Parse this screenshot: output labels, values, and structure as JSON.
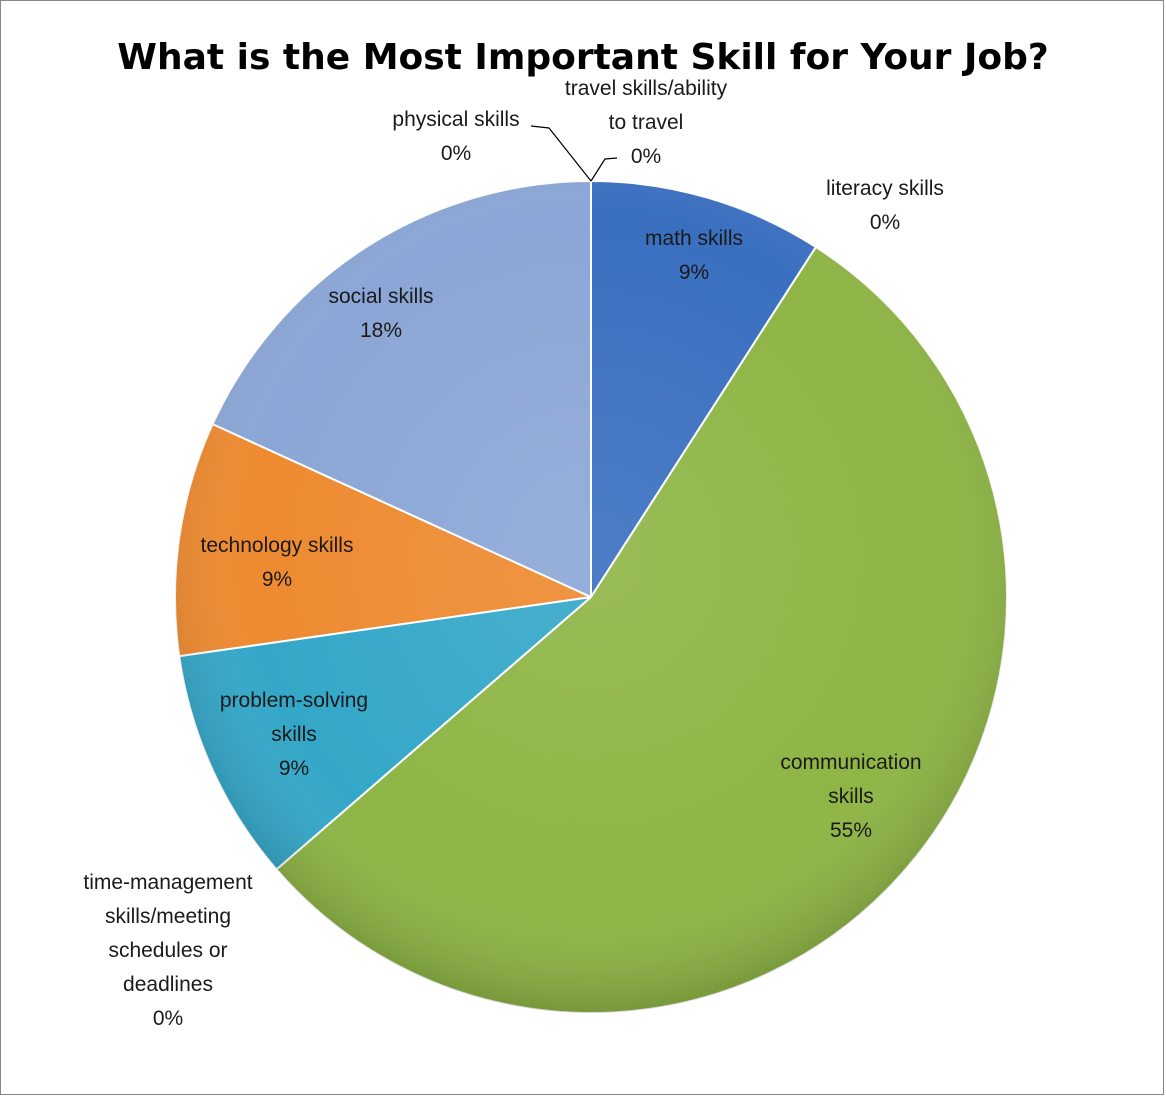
{
  "chart_data": {
    "type": "pie",
    "title": "What is the Most Important Skill for Your Job?",
    "start_angle_deg": 0,
    "direction": "clockwise",
    "slices": [
      {
        "label_lines": [
          "math skills"
        ],
        "value_label": "9%",
        "value": 9.09,
        "color": "#3a6fc0"
      },
      {
        "label_lines": [
          "literacy skills"
        ],
        "value_label": "0%",
        "value": 0,
        "color": "#c0504d"
      },
      {
        "label_lines": [
          "communication",
          "skills"
        ],
        "value_label": "55%",
        "value": 54.55,
        "color": "#8eb545"
      },
      {
        "label_lines": [
          "time-management",
          "skills/meeting",
          "schedules or",
          "deadlines"
        ],
        "value_label": "0%",
        "value": 0,
        "color": "#7a5c9c"
      },
      {
        "label_lines": [
          "problem-solving",
          "skills"
        ],
        "value_label": "9%",
        "value": 9.09,
        "color": "#34a7c8"
      },
      {
        "label_lines": [
          "technology skills"
        ],
        "value_label": "9%",
        "value": 9.09,
        "color": "#ee8a30"
      },
      {
        "label_lines": [
          "social skills"
        ],
        "value_label": "18%",
        "value": 18.18,
        "color": "#8ba6d6"
      },
      {
        "label_lines": [
          "physical skills"
        ],
        "value_label": "0%",
        "value": 0,
        "color": "#4f81bd"
      },
      {
        "label_lines": [
          "travel skills/ability",
          "to travel"
        ],
        "value_label": "0%",
        "value": 0,
        "color": "#9bbb59"
      }
    ]
  }
}
